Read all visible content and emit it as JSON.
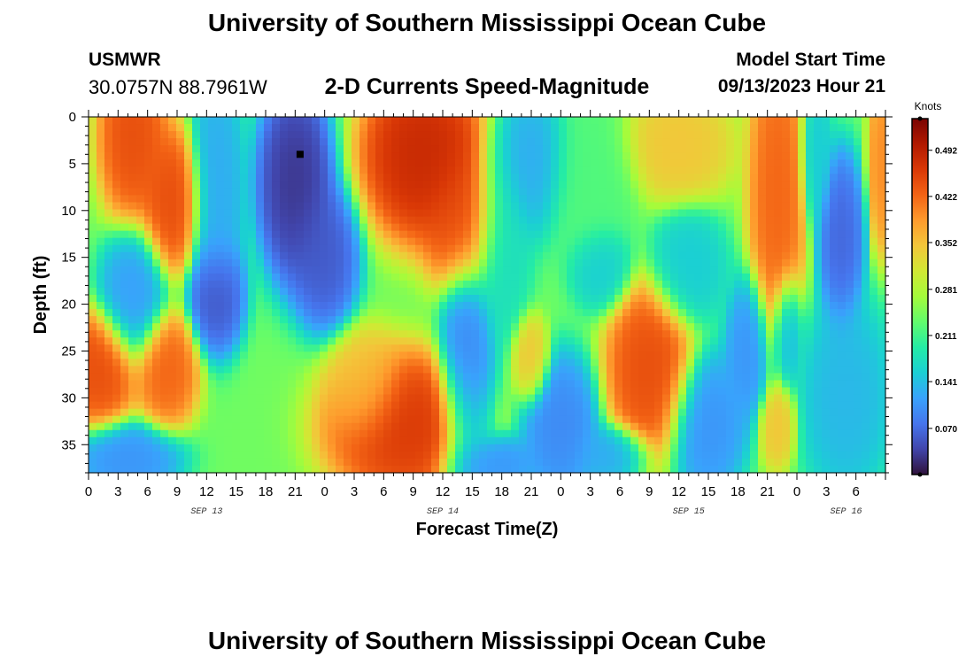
{
  "header": {
    "title": "University of Southern Mississippi Ocean Cube",
    "station": "USMWR",
    "coordinates": "30.0757N  88.7961W",
    "subtitle": "2-D Currents Speed-Magnitude",
    "model_start_label": "Model Start Time",
    "model_start_time": "09/13/2023 Hour 21"
  },
  "footer": {
    "title": "University of Southern Mississippi Ocean Cube"
  },
  "colors": {
    "palette": [
      "#30123b",
      "#4145ab",
      "#4675ed",
      "#39a2fc",
      "#1bcfd4",
      "#24eca6",
      "#61fc6c",
      "#a4fc3b",
      "#d1e834",
      "#f3c63a",
      "#fe9b2d",
      "#f36315",
      "#d93806",
      "#b11901",
      "#7a0402"
    ],
    "marker": "#000000"
  },
  "chart_data": {
    "type": "heatmap",
    "title": "2-D Currents Speed-Magnitude",
    "xlabel": "Forecast Time(Z)",
    "ylabel": "Depth (ft)",
    "x_range_hours": [
      0,
      81
    ],
    "x_tick_labels": [
      "0",
      "3",
      "6",
      "9",
      "12",
      "15",
      "18",
      "21",
      "0",
      "3",
      "6",
      "9",
      "12",
      "15",
      "18",
      "21",
      "0",
      "3",
      "6",
      "9",
      "12",
      "15",
      "18",
      "21",
      "0",
      "3",
      "6"
    ],
    "date_labels": [
      {
        "label": "SEP 13",
        "hour": 12
      },
      {
        "label": "SEP 14",
        "hour": 36
      },
      {
        "label": "SEP 15",
        "hour": 61
      },
      {
        "label": "SEP 16",
        "hour": 77
      }
    ],
    "ylim": [
      0,
      38
    ],
    "y_ticks": [
      0,
      5,
      10,
      15,
      20,
      25,
      30,
      35
    ],
    "colorbar": {
      "unit": "Knots",
      "range": [
        0.0,
        0.54
      ],
      "ticks": [
        "0.070",
        "0.141",
        "0.211",
        "0.281",
        "0.352",
        "0.422",
        "0.492"
      ],
      "tick_values": [
        0.07,
        0.141,
        0.211,
        0.281,
        0.352,
        0.422,
        0.492
      ]
    },
    "marker": {
      "hour": 21.5,
      "depth": 4
    },
    "background_speed": 0.24,
    "features": [
      {
        "hour": 4.5,
        "depth": 2,
        "speed": 0.45,
        "sx": 2.2,
        "sy": 6
      },
      {
        "hour": 8.5,
        "depth": 9,
        "speed": 0.45,
        "sx": 2.0,
        "sy": 5
      },
      {
        "hour": 4.5,
        "depth": 19,
        "speed": 0.11,
        "sx": 2.2,
        "sy": 4.5
      },
      {
        "hour": 13,
        "depth": 19,
        "speed": 0.04,
        "sx": 1.8,
        "sy": 4
      },
      {
        "hour": 13,
        "depth": 8,
        "speed": 0.12,
        "sx": 1.8,
        "sy": 9
      },
      {
        "hour": 21,
        "depth": 7,
        "speed": 0.02,
        "sx": 2.5,
        "sy": 7
      },
      {
        "hour": 24,
        "depth": 15,
        "speed": 0.05,
        "sx": 2.2,
        "sy": 5
      },
      {
        "hour": 1,
        "depth": 27,
        "speed": 0.45,
        "sx": 2.5,
        "sy": 4
      },
      {
        "hour": 8,
        "depth": 27,
        "speed": 0.43,
        "sx": 2.0,
        "sy": 4
      },
      {
        "hour": 4,
        "depth": 36.5,
        "speed": 0.1,
        "sx": 3.5,
        "sy": 2.5
      },
      {
        "hour": 34,
        "depth": 4,
        "speed": 0.49,
        "sx": 4.0,
        "sy": 6
      },
      {
        "hour": 38,
        "depth": 11,
        "speed": 0.45,
        "sx": 2.5,
        "sy": 5
      },
      {
        "hour": 32,
        "depth": 33,
        "speed": 0.47,
        "sx": 5.0,
        "sy": 5
      },
      {
        "hour": 28,
        "depth": 29,
        "speed": 0.35,
        "sx": 2.5,
        "sy": 4
      },
      {
        "hour": 38.5,
        "depth": 28,
        "speed": 0.09,
        "sx": 1.8,
        "sy": 9
      },
      {
        "hour": 42,
        "depth": 13,
        "speed": 0.17,
        "sx": 2.0,
        "sy": 7
      },
      {
        "hour": 41,
        "depth": 37,
        "speed": 0.1,
        "sx": 3.0,
        "sy": 2
      },
      {
        "hour": 45,
        "depth": 26,
        "speed": 0.35,
        "sx": 1.2,
        "sy": 3
      },
      {
        "hour": 45,
        "depth": 5,
        "speed": 0.12,
        "sx": 2.5,
        "sy": 5
      },
      {
        "hour": 48,
        "depth": 33,
        "speed": 0.09,
        "sx": 2.5,
        "sy": 5
      },
      {
        "hour": 51,
        "depth": 7,
        "speed": 0.22,
        "sx": 3.0,
        "sy": 6
      },
      {
        "hour": 52,
        "depth": 16,
        "speed": 0.15,
        "sx": 2.0,
        "sy": 3
      },
      {
        "hour": 57,
        "depth": 27,
        "speed": 0.45,
        "sx": 2.8,
        "sy": 6
      },
      {
        "hour": 53,
        "depth": 36,
        "speed": 0.12,
        "sx": 2.5,
        "sy": 2
      },
      {
        "hour": 60,
        "depth": 3,
        "speed": 0.35,
        "sx": 3.5,
        "sy": 4
      },
      {
        "hour": 61,
        "depth": 16,
        "speed": 0.15,
        "sx": 2.5,
        "sy": 4
      },
      {
        "hour": 63,
        "depth": 33,
        "speed": 0.1,
        "sx": 2.5,
        "sy": 5
      },
      {
        "hour": 67,
        "depth": 25,
        "speed": 0.1,
        "sx": 1.5,
        "sy": 5
      },
      {
        "hour": 70,
        "depth": 8,
        "speed": 0.43,
        "sx": 1.8,
        "sy": 11
      },
      {
        "hour": 70,
        "depth": 33,
        "speed": 0.35,
        "sx": 1.2,
        "sy": 3
      },
      {
        "hour": 71,
        "depth": 23,
        "speed": 0.12,
        "sx": 1.0,
        "sy": 4
      },
      {
        "hour": 76.5,
        "depth": 13,
        "speed": 0.06,
        "sx": 1.5,
        "sy": 6
      },
      {
        "hour": 74,
        "depth": 4,
        "speed": 0.15,
        "sx": 1.0,
        "sy": 5
      },
      {
        "hour": 77,
        "depth": 30,
        "speed": 0.13,
        "sx": 3.0,
        "sy": 7
      },
      {
        "hour": 80.5,
        "depth": 5,
        "speed": 0.4,
        "sx": 0.8,
        "sy": 6
      }
    ]
  }
}
